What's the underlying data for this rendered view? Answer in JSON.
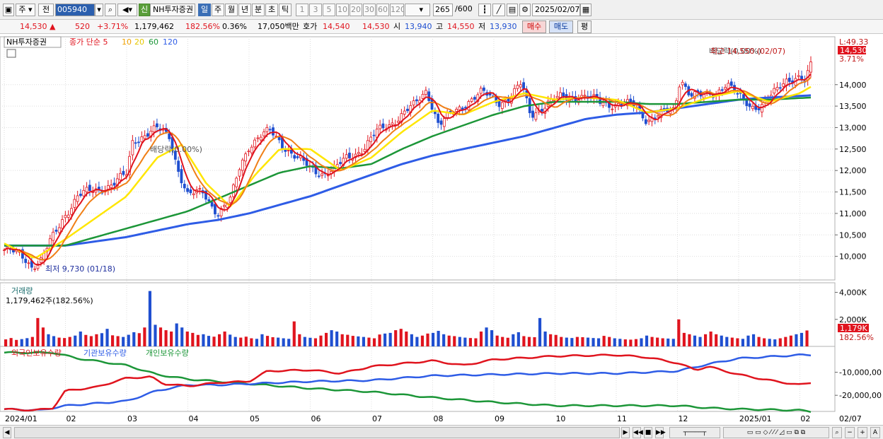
{
  "toolbar": {
    "period_selector": "주",
    "prev_label": "전",
    "stock_code": "005940",
    "new_badge": "신",
    "stock_name": "NH투자증권",
    "periods": [
      "일",
      "주",
      "월",
      "년",
      "분",
      "초",
      "틱"
    ],
    "minute_options": [
      "1",
      "3",
      "5",
      "10",
      "20",
      "30",
      "60",
      "120"
    ],
    "count_value": "265",
    "count_total": "/600",
    "date_value": "2025/02/07"
  },
  "quote": {
    "price": "14,530",
    "change": "520",
    "change_pct": "+3.71%",
    "volume": "1,179,462",
    "volume_ratio": "182.56%",
    "turnover_rate": "0.36%",
    "amount": "17,050백만",
    "ask_label": "호가",
    "ask": "14,540",
    "bid": "14,530",
    "open_label": "시",
    "open": "13,940",
    "high_label": "고",
    "high": "14,550",
    "low_label": "저",
    "low": "13,930",
    "buy_button": "매수",
    "sell_button": "매도",
    "eval_button": "평"
  },
  "colors": {
    "up": "#e0141e",
    "down": "#1f4fd0",
    "ma5": "#e0141e",
    "ma10": "#f07f16",
    "ma20": "#ffe600",
    "ma60": "#1c9638",
    "ma120": "#2e5ce6",
    "foreign": "#e0141e",
    "institution": "#2e5ce6",
    "individual": "#1c9638"
  },
  "chart_data": [
    {
      "type": "candlestick",
      "title": "NH투자증권",
      "legend": [
        "종가 단순",
        "5",
        "10",
        "20",
        "60",
        "120"
      ],
      "y_ticks": [
        "14,000",
        "13,500",
        "13,000",
        "12,500",
        "12,000",
        "11,500",
        "11,000",
        "10,500",
        "10,000"
      ],
      "ylim": [
        9450,
        15050
      ],
      "x_ticks": [
        "2024/01",
        "02",
        "03",
        "04",
        "05",
        "06",
        "07",
        "08",
        "09",
        "10",
        "11",
        "12",
        "2025/01",
        "02",
        "02/07"
      ],
      "annotations": [
        "최저 9,730 (01/18)",
        "배당락(0.00%)",
        "배당락(0.00%)",
        "최고 14,550 (02/07)"
      ],
      "right_labels": [
        "L:49.33",
        "14,530",
        "3.71%"
      ],
      "ma_legend": [
        "종가 단순 5",
        "10",
        "20",
        "60",
        "120"
      ],
      "close_points": [
        {
          "m": 0.0,
          "v": 10150
        },
        {
          "m": 0.3,
          "v": 10000
        },
        {
          "m": 0.45,
          "v": 9800
        },
        {
          "m": 0.6,
          "v": 9900
        },
        {
          "m": 0.8,
          "v": 10450
        },
        {
          "m": 1.0,
          "v": 11000
        },
        {
          "m": 1.2,
          "v": 11400
        },
        {
          "m": 1.5,
          "v": 11550
        },
        {
          "m": 1.8,
          "v": 11700
        },
        {
          "m": 2.0,
          "v": 11900
        },
        {
          "m": 2.1,
          "v": 12700
        },
        {
          "m": 2.3,
          "v": 12850
        },
        {
          "m": 2.5,
          "v": 12950
        },
        {
          "m": 2.7,
          "v": 12800
        },
        {
          "m": 2.85,
          "v": 12000
        },
        {
          "m": 3.0,
          "v": 11400
        },
        {
          "m": 3.25,
          "v": 11500
        },
        {
          "m": 3.5,
          "v": 11000
        },
        {
          "m": 3.7,
          "v": 11300
        },
        {
          "m": 3.85,
          "v": 12100
        },
        {
          "m": 4.0,
          "v": 12600
        },
        {
          "m": 4.2,
          "v": 12800
        },
        {
          "m": 4.35,
          "v": 12900
        },
        {
          "m": 4.5,
          "v": 12700
        },
        {
          "m": 4.8,
          "v": 12250
        },
        {
          "m": 5.0,
          "v": 12050
        },
        {
          "m": 5.2,
          "v": 11950
        },
        {
          "m": 5.4,
          "v": 12000
        },
        {
          "m": 5.6,
          "v": 12300
        },
        {
          "m": 5.9,
          "v": 12550
        },
        {
          "m": 6.1,
          "v": 12900
        },
        {
          "m": 6.4,
          "v": 13200
        },
        {
          "m": 6.7,
          "v": 13500
        },
        {
          "m": 6.9,
          "v": 13900
        },
        {
          "m": 7.0,
          "v": 13500
        },
        {
          "m": 7.1,
          "v": 13050
        },
        {
          "m": 7.3,
          "v": 13300
        },
        {
          "m": 7.6,
          "v": 13650
        },
        {
          "m": 7.8,
          "v": 13800
        },
        {
          "m": 8.1,
          "v": 13600
        },
        {
          "m": 8.3,
          "v": 13750
        },
        {
          "m": 8.45,
          "v": 14000
        },
        {
          "m": 8.6,
          "v": 13300
        },
        {
          "m": 8.8,
          "v": 13500
        },
        {
          "m": 9.1,
          "v": 13700
        },
        {
          "m": 9.4,
          "v": 13750
        },
        {
          "m": 9.7,
          "v": 13600
        },
        {
          "m": 10.0,
          "v": 13550
        },
        {
          "m": 10.3,
          "v": 13500
        },
        {
          "m": 10.5,
          "v": 13200
        },
        {
          "m": 10.7,
          "v": 13300
        },
        {
          "m": 10.95,
          "v": 13400
        },
        {
          "m": 11.05,
          "v": 14200
        },
        {
          "m": 11.2,
          "v": 13800
        },
        {
          "m": 11.4,
          "v": 13700
        },
        {
          "m": 11.6,
          "v": 13800
        },
        {
          "m": 11.8,
          "v": 14050
        },
        {
          "m": 12.0,
          "v": 13700
        },
        {
          "m": 12.2,
          "v": 13500
        },
        {
          "m": 12.4,
          "v": 13550
        },
        {
          "m": 12.6,
          "v": 13800
        },
        {
          "m": 12.8,
          "v": 14150
        },
        {
          "m": 13.0,
          "v": 14200
        },
        {
          "m": 13.1,
          "v": 14010
        },
        {
          "m": 13.18,
          "v": 14530
        }
      ],
      "ma20_points": [
        {
          "m": 0.0,
          "v": 10300
        },
        {
          "m": 0.5,
          "v": 9950
        },
        {
          "m": 1.0,
          "v": 10400
        },
        {
          "m": 1.5,
          "v": 10900
        },
        {
          "m": 2.0,
          "v": 11400
        },
        {
          "m": 2.5,
          "v": 12300
        },
        {
          "m": 2.9,
          "v": 12600
        },
        {
          "m": 3.3,
          "v": 11700
        },
        {
          "m": 3.7,
          "v": 11150
        },
        {
          "m": 4.1,
          "v": 11900
        },
        {
          "m": 4.5,
          "v": 12500
        },
        {
          "m": 5.0,
          "v": 12500
        },
        {
          "m": 5.5,
          "v": 12000
        },
        {
          "m": 6.0,
          "v": 12300
        },
        {
          "m": 6.5,
          "v": 12900
        },
        {
          "m": 7.0,
          "v": 13400
        },
        {
          "m": 7.5,
          "v": 13300
        },
        {
          "m": 8.0,
          "v": 13600
        },
        {
          "m": 8.5,
          "v": 13800
        },
        {
          "m": 9.0,
          "v": 13650
        },
        {
          "m": 9.5,
          "v": 13700
        },
        {
          "m": 10.0,
          "v": 13650
        },
        {
          "m": 10.5,
          "v": 13350
        },
        {
          "m": 11.0,
          "v": 13450
        },
        {
          "m": 11.5,
          "v": 13700
        },
        {
          "m": 12.0,
          "v": 13850
        },
        {
          "m": 12.5,
          "v": 13600
        },
        {
          "m": 13.0,
          "v": 13800
        },
        {
          "m": 13.18,
          "v": 13950
        }
      ],
      "ma60_points": [
        {
          "m": 0.0,
          "v": 10250
        },
        {
          "m": 1.0,
          "v": 10250
        },
        {
          "m": 1.5,
          "v": 10450
        },
        {
          "m": 2.0,
          "v": 10650
        },
        {
          "m": 2.5,
          "v": 10850
        },
        {
          "m": 3.0,
          "v": 11050
        },
        {
          "m": 3.5,
          "v": 11350
        },
        {
          "m": 4.0,
          "v": 11650
        },
        {
          "m": 4.5,
          "v": 11950
        },
        {
          "m": 5.0,
          "v": 12100
        },
        {
          "m": 5.5,
          "v": 12050
        },
        {
          "m": 6.0,
          "v": 12150
        },
        {
          "m": 6.5,
          "v": 12500
        },
        {
          "m": 7.0,
          "v": 12800
        },
        {
          "m": 7.5,
          "v": 13050
        },
        {
          "m": 8.0,
          "v": 13300
        },
        {
          "m": 8.5,
          "v": 13500
        },
        {
          "m": 9.0,
          "v": 13600
        },
        {
          "m": 9.5,
          "v": 13600
        },
        {
          "m": 10.0,
          "v": 13600
        },
        {
          "m": 10.5,
          "v": 13550
        },
        {
          "m": 11.0,
          "v": 13550
        },
        {
          "m": 11.5,
          "v": 13600
        },
        {
          "m": 12.0,
          "v": 13650
        },
        {
          "m": 12.5,
          "v": 13650
        },
        {
          "m": 13.18,
          "v": 13700
        }
      ],
      "ma120_points": [
        {
          "m": 0.0,
          "v": 10250
        },
        {
          "m": 1.0,
          "v": 10250
        },
        {
          "m": 1.5,
          "v": 10350
        },
        {
          "m": 2.0,
          "v": 10450
        },
        {
          "m": 2.5,
          "v": 10600
        },
        {
          "m": 3.0,
          "v": 10750
        },
        {
          "m": 3.5,
          "v": 10850
        },
        {
          "m": 4.0,
          "v": 11000
        },
        {
          "m": 4.5,
          "v": 11200
        },
        {
          "m": 5.0,
          "v": 11400
        },
        {
          "m": 5.5,
          "v": 11650
        },
        {
          "m": 6.0,
          "v": 11900
        },
        {
          "m": 6.5,
          "v": 12150
        },
        {
          "m": 7.0,
          "v": 12350
        },
        {
          "m": 7.5,
          "v": 12500
        },
        {
          "m": 8.0,
          "v": 12650
        },
        {
          "m": 8.5,
          "v": 12800
        },
        {
          "m": 9.0,
          "v": 13000
        },
        {
          "m": 9.5,
          "v": 13200
        },
        {
          "m": 10.0,
          "v": 13300
        },
        {
          "m": 10.5,
          "v": 13350
        },
        {
          "m": 11.0,
          "v": 13450
        },
        {
          "m": 11.5,
          "v": 13550
        },
        {
          "m": 12.0,
          "v": 13650
        },
        {
          "m": 12.5,
          "v": 13700
        },
        {
          "m": 13.18,
          "v": 13750
        }
      ]
    },
    {
      "type": "bar",
      "title": "거래량",
      "info": "1,179,462주(182.56%)",
      "y_ticks": [
        "4,000K",
        "2,000K"
      ],
      "right_labels": [
        "1,179K",
        "182.56%"
      ],
      "ylim": [
        0,
        4500
      ],
      "values_k": [
        520,
        620,
        480,
        540,
        610,
        700,
        2100,
        1400,
        900,
        760,
        650,
        620,
        700,
        800,
        1100,
        850,
        760,
        900,
        980,
        1300,
        820,
        760,
        700,
        860,
        1050,
        980,
        1400,
        4100,
        1600,
        1400,
        1200,
        1100,
        1700,
        1400,
        1100,
        1000,
        850,
        900,
        780,
        720,
        900,
        1100,
        870,
        700,
        650,
        720,
        600,
        560,
        900,
        780,
        680,
        650,
        600,
        560,
        1850,
        900,
        700,
        640,
        600,
        800,
        1000,
        1200,
        1100,
        900,
        860,
        780,
        740,
        700,
        650,
        600,
        880,
        950,
        1000,
        1200,
        1300,
        1100,
        900,
        700,
        800,
        950,
        1000,
        1150,
        900,
        800,
        760,
        700,
        650,
        620,
        600,
        1100,
        1400,
        1200,
        800,
        700,
        640,
        900,
        1050,
        760,
        700,
        680,
        2100,
        1100,
        900,
        850,
        700,
        650,
        620,
        700,
        680,
        650,
        620,
        600,
        780,
        700,
        600,
        560,
        520,
        500,
        540,
        600,
        800,
        700,
        650,
        600,
        580,
        560,
        2000,
        1000,
        900,
        800,
        700,
        900,
        1100,
        900,
        800,
        700,
        650,
        600,
        560,
        800,
        900,
        700,
        600,
        560,
        520,
        600,
        700,
        800,
        900,
        1000,
        1179
      ]
    },
    {
      "type": "line",
      "title": "보유수량",
      "legend": [
        "외국인보유수량",
        "기관보유수량",
        "개인보유수량"
      ],
      "y_ticks": [
        "-10,000,00",
        "-20,000,00"
      ],
      "ylim": [
        -27000000,
        0
      ],
      "foreign": [
        {
          "m": 0.0,
          "v": -26000000
        },
        {
          "m": 0.5,
          "v": -26500000
        },
        {
          "m": 0.8,
          "v": -25500000
        },
        {
          "m": 1.0,
          "v": -18000000
        },
        {
          "m": 1.5,
          "v": -16500000
        },
        {
          "m": 2.0,
          "v": -12500000
        },
        {
          "m": 2.4,
          "v": -12000000
        },
        {
          "m": 2.6,
          "v": -15000000
        },
        {
          "m": 3.0,
          "v": -16000000
        },
        {
          "m": 3.5,
          "v": -14500000
        },
        {
          "m": 4.0,
          "v": -14000000
        },
        {
          "m": 4.3,
          "v": -9500000
        },
        {
          "m": 5.0,
          "v": -9000000
        },
        {
          "m": 5.5,
          "v": -10500000
        },
        {
          "m": 6.0,
          "v": -7500000
        },
        {
          "m": 7.0,
          "v": -5000000
        },
        {
          "m": 7.5,
          "v": -7000000
        },
        {
          "m": 8.0,
          "v": -4500000
        },
        {
          "m": 9.0,
          "v": -3000000
        },
        {
          "m": 10.0,
          "v": -2500000
        },
        {
          "m": 10.5,
          "v": -3500000
        },
        {
          "m": 11.0,
          "v": -6000000
        },
        {
          "m": 11.3,
          "v": -9000000
        },
        {
          "m": 11.5,
          "v": -7500000
        },
        {
          "m": 12.0,
          "v": -11000000
        },
        {
          "m": 12.5,
          "v": -13500000
        },
        {
          "m": 13.0,
          "v": -15500000
        },
        {
          "m": 13.18,
          "v": -14500000
        }
      ],
      "institution": [
        {
          "m": 0.0,
          "v": -26000000
        },
        {
          "m": 0.6,
          "v": -26500000
        },
        {
          "m": 1.0,
          "v": -24500000
        },
        {
          "m": 2.0,
          "v": -22500000
        },
        {
          "m": 2.5,
          "v": -18000000
        },
        {
          "m": 3.0,
          "v": -15500000
        },
        {
          "m": 3.5,
          "v": -15500000
        },
        {
          "m": 4.0,
          "v": -15000000
        },
        {
          "m": 5.0,
          "v": -14000000
        },
        {
          "m": 6.0,
          "v": -13500000
        },
        {
          "m": 7.0,
          "v": -11500000
        },
        {
          "m": 8.0,
          "v": -11000000
        },
        {
          "m": 9.0,
          "v": -10500000
        },
        {
          "m": 10.0,
          "v": -10500000
        },
        {
          "m": 11.0,
          "v": -9500000
        },
        {
          "m": 11.5,
          "v": -6500000
        },
        {
          "m": 12.0,
          "v": -4000000
        },
        {
          "m": 13.0,
          "v": -2500000
        },
        {
          "m": 13.18,
          "v": -2500000
        }
      ],
      "individual": [
        {
          "m": 0.0,
          "v": -1500000
        },
        {
          "m": 0.8,
          "v": -1500000
        },
        {
          "m": 1.2,
          "v": -4000000
        },
        {
          "m": 2.0,
          "v": -7000000
        },
        {
          "m": 2.5,
          "v": -11000000
        },
        {
          "m": 3.0,
          "v": -13000000
        },
        {
          "m": 4.0,
          "v": -15000000
        },
        {
          "m": 5.0,
          "v": -17000000
        },
        {
          "m": 6.0,
          "v": -18500000
        },
        {
          "m": 7.0,
          "v": -21000000
        },
        {
          "m": 8.0,
          "v": -23000000
        },
        {
          "m": 9.0,
          "v": -24500000
        },
        {
          "m": 10.0,
          "v": -24500000
        },
        {
          "m": 11.0,
          "v": -24500000
        },
        {
          "m": 11.5,
          "v": -25500000
        },
        {
          "m": 12.0,
          "v": -26000000
        },
        {
          "m": 13.0,
          "v": -26500000
        },
        {
          "m": 13.18,
          "v": -27000000
        }
      ]
    }
  ],
  "bottom_bar": {
    "icons": [
      "play-icon",
      "prev-icon",
      "stop-icon",
      "next-icon",
      "minus-icon",
      "plus-icon",
      "search-icon"
    ]
  }
}
